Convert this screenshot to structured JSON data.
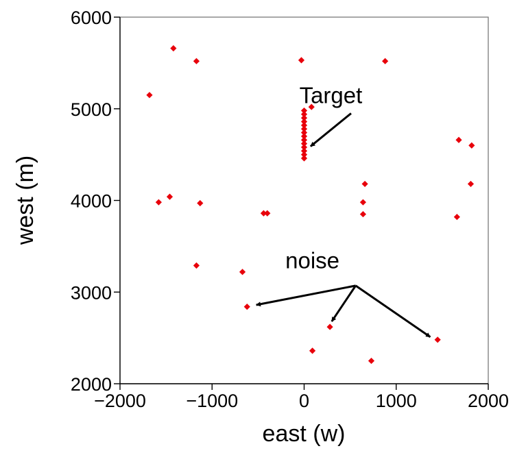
{
  "chart_data": {
    "type": "scatter",
    "xlabel": "east (w)",
    "ylabel": "west (m)",
    "xlim": [
      -2000,
      2000
    ],
    "ylim": [
      2000,
      6000
    ],
    "xticks": [
      -2000,
      -1000,
      0,
      1000,
      2000
    ],
    "yticks": [
      2000,
      3000,
      4000,
      5000,
      6000
    ],
    "xtick_labels": [
      "−2000",
      "−1000",
      "0",
      "1000",
      "2000"
    ],
    "ytick_labels": [
      "2000",
      "3000",
      "4000",
      "5000",
      "6000"
    ],
    "grid": false,
    "marker_color": "#e8000b",
    "marker": "diamond",
    "series": [
      {
        "points": [
          [
            -1420,
            5660
          ],
          [
            -1170,
            5520
          ],
          [
            -30,
            5530
          ],
          [
            880,
            5520
          ],
          [
            -1680,
            5150
          ],
          [
            80,
            5020
          ],
          [
            0,
            4980
          ],
          [
            0,
            4940
          ],
          [
            0,
            4900
          ],
          [
            0,
            4860
          ],
          [
            0,
            4820
          ],
          [
            0,
            4780
          ],
          [
            0,
            4740
          ],
          [
            0,
            4700
          ],
          [
            0,
            4660
          ],
          [
            0,
            4620
          ],
          [
            0,
            4580
          ],
          [
            0,
            4540
          ],
          [
            0,
            4500
          ],
          [
            0,
            4460
          ],
          [
            1680,
            4660
          ],
          [
            1820,
            4600
          ],
          [
            660,
            4180
          ],
          [
            1810,
            4180
          ],
          [
            -1460,
            4040
          ],
          [
            -1580,
            3980
          ],
          [
            -1130,
            3970
          ],
          [
            640,
            3980
          ],
          [
            -440,
            3860
          ],
          [
            -400,
            3860
          ],
          [
            640,
            3850
          ],
          [
            1660,
            3820
          ],
          [
            -1170,
            3290
          ],
          [
            -670,
            3220
          ],
          [
            -620,
            2840
          ],
          [
            280,
            2620
          ],
          [
            1450,
            2480
          ],
          [
            90,
            2360
          ],
          [
            730,
            2250
          ]
        ]
      }
    ],
    "annotations": [
      {
        "text": "Target",
        "text_at": [
          290,
          5060
        ],
        "arrow_from": [
          510,
          4950
        ],
        "arrow_to": [
          70,
          4590
        ]
      },
      {
        "text": "noise",
        "text_at": [
          90,
          3260
        ],
        "arrow_from": [
          560,
          3070
        ],
        "arrow_to": [
          -520,
          2860
        ]
      },
      {
        "text": "noise",
        "arrow_from": [
          560,
          3070
        ],
        "arrow_to": [
          300,
          2680
        ]
      },
      {
        "text": "noise",
        "arrow_from": [
          560,
          3070
        ],
        "arrow_to": [
          1370,
          2510
        ]
      }
    ]
  }
}
